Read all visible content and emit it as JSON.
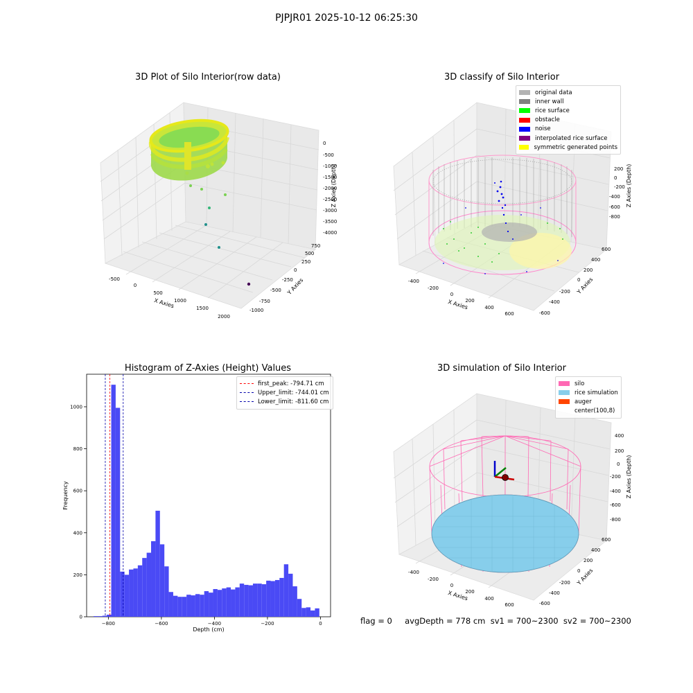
{
  "figure": {
    "suptitle": "PJPJR01 2025-10-12 06:25:30",
    "footer": "flag = 0     avgDepth = 778 cm  sv1 = 700~2300  sv2 = 700~2300"
  },
  "chart_data": [
    {
      "type": "scatter3d",
      "title": "3D Plot of Silo Interior(row data)",
      "xlabel": "X Axies",
      "ylabel": "Y Axies",
      "zlabel": "Z Axies (Depth)",
      "xticks": [
        "-500",
        "0",
        "500",
        "1000",
        "1500",
        "2000"
      ],
      "yticks": [
        "-1000",
        "-750",
        "-500",
        "-250",
        "0",
        "250",
        "500",
        "750"
      ],
      "zticks": [
        "0",
        "-500",
        "-1000",
        "-1500",
        "-2000",
        "-2500",
        "-3000",
        "-3500",
        "-4000"
      ],
      "colormap": "viridis",
      "outliers": [
        {
          "x": 300,
          "y": 200,
          "z": -1800
        },
        {
          "x": 420,
          "y": 150,
          "z": -2200
        },
        {
          "x": 520,
          "y": 120,
          "z": -2700
        },
        {
          "x": 700,
          "y": 100,
          "z": -3300
        },
        {
          "x": 1000,
          "y": 50,
          "z": -3900
        },
        {
          "x": 1900,
          "y": -700,
          "z": -4200
        }
      ]
    },
    {
      "type": "scatter3d",
      "title": "3D classify of Silo Interior",
      "xlabel": "X Axies",
      "ylabel": "Y Axies",
      "zlabel": "Z Axies (Depth)",
      "xticks": [
        "-400",
        "-200",
        "0",
        "200",
        "400",
        "600"
      ],
      "yticks": [
        "-600",
        "-400",
        "-200",
        "0",
        "200",
        "400",
        "600"
      ],
      "zticks": [
        "200",
        "0",
        "-200",
        "-400",
        "-600",
        "-800"
      ],
      "legend": [
        {
          "label": "original data",
          "color": "#b3b3b3"
        },
        {
          "label": "inner wall",
          "color": "#808080"
        },
        {
          "label": "rice surface",
          "color": "#00ff00"
        },
        {
          "label": "obstacle",
          "color": "#ff0000"
        },
        {
          "label": "noise",
          "color": "#0000ff"
        },
        {
          "label": "interpolated rice surface",
          "color": "#800080"
        },
        {
          "label": "symmetric generated points",
          "color": "#ffff00"
        }
      ]
    },
    {
      "type": "bar",
      "title": "Histogram of Z-Axies (Height) Values",
      "xlabel": "Depth (cm)",
      "ylabel": "Frequency",
      "xlim": [
        -882,
        38
      ],
      "ylim": [
        0,
        1155
      ],
      "xticks": [
        -800,
        -600,
        -400,
        -200,
        0
      ],
      "yticks": [
        0,
        200,
        400,
        600,
        800,
        1000
      ],
      "bin_start": -856,
      "bin_width": 16.7,
      "values": [
        3,
        3,
        5,
        10,
        1105,
        995,
        215,
        200,
        225,
        230,
        245,
        280,
        305,
        360,
        505,
        345,
        240,
        118,
        100,
        95,
        95,
        105,
        102,
        108,
        105,
        122,
        115,
        132,
        128,
        135,
        140,
        130,
        140,
        158,
        152,
        150,
        158,
        158,
        155,
        172,
        170,
        175,
        185,
        250,
        205,
        145,
        85,
        42,
        45,
        30,
        40
      ],
      "bar_color": "#4a4af5",
      "vlines": [
        {
          "label": "first_peak: -794.71 cm",
          "x": -794.71,
          "color": "#ff0000"
        },
        {
          "label": "Upper_limit: -744.01 cm",
          "x": -744.01,
          "color": "#0000aa"
        },
        {
          "label": "Lower_limit: -811.60 cm",
          "x": -811.6,
          "color": "#0000aa"
        }
      ]
    },
    {
      "type": "surface3d",
      "title": "3D simulation of Silo Interior",
      "xlabel": "X Axies",
      "ylabel": "Y Axies",
      "zlabel": "Z Axies (Depth)",
      "xticks": [
        "-400",
        "-200",
        "0",
        "200",
        "400",
        "600"
      ],
      "yticks": [
        "-600",
        "-400",
        "-200",
        "0",
        "200",
        "400",
        "600"
      ],
      "zticks": [
        "400",
        "200",
        "0",
        "-200",
        "-400",
        "-600",
        "-800"
      ],
      "legend": [
        {
          "label": "silo",
          "color": "#ff69b4"
        },
        {
          "label": "rice simulation",
          "color": "#87ceeb"
        },
        {
          "label": "auger",
          "color": "#ff4500"
        },
        {
          "label": "center(100,8)",
          "color": "none"
        }
      ]
    }
  ]
}
